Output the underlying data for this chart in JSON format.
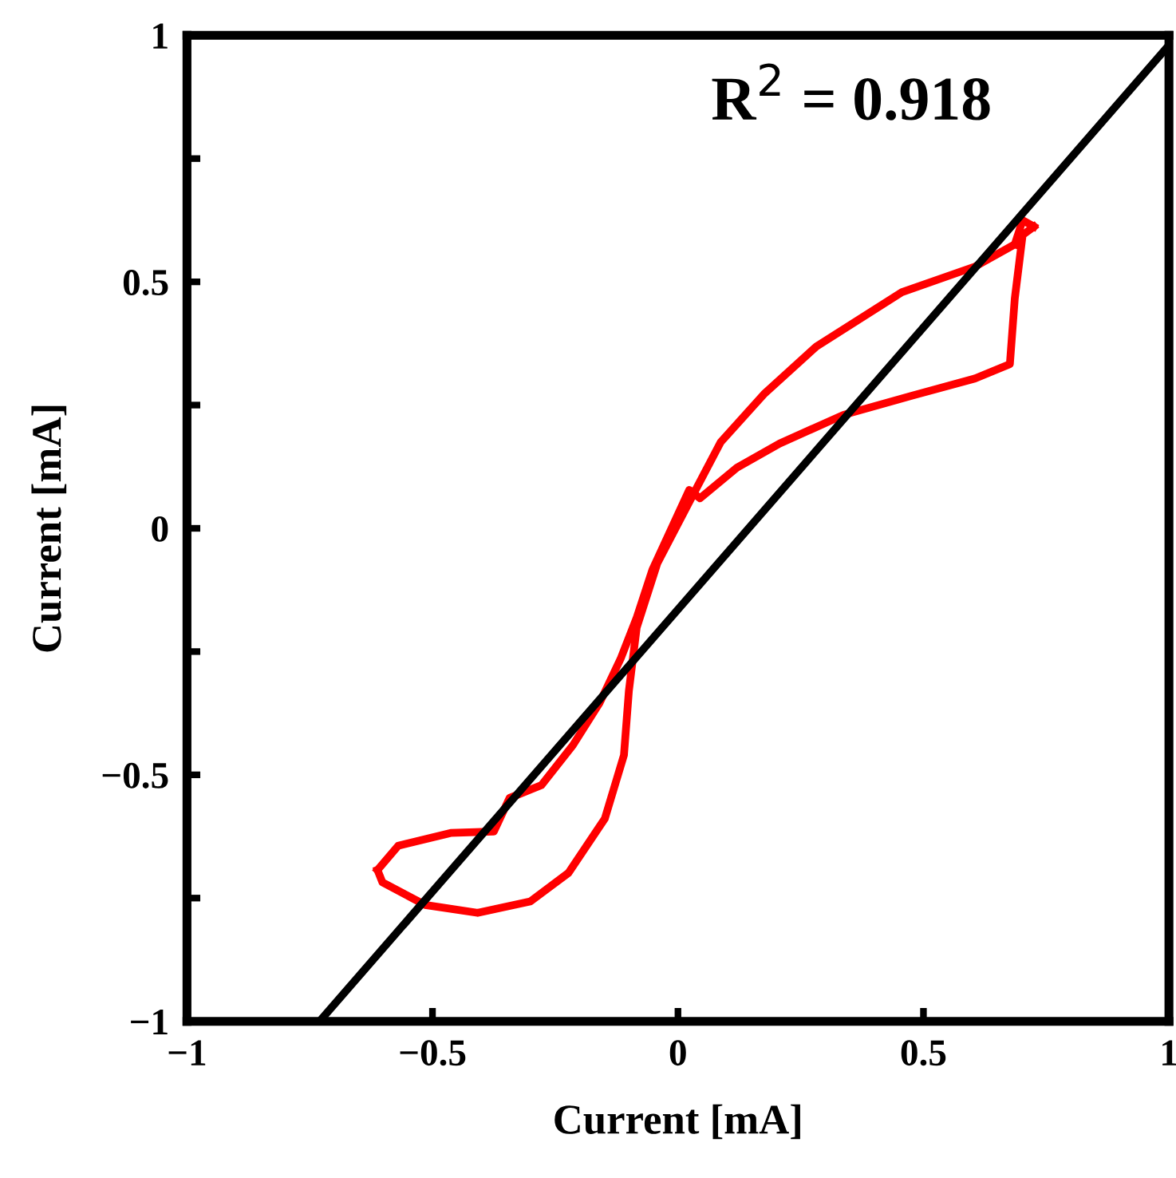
{
  "chart_data": {
    "type": "line",
    "xlabel": "Current [mA]",
    "ylabel": "Current [mA]",
    "annotations": [
      "R$^{2}$ = 0.918"
    ],
    "xlim": [
      -1,
      1
    ],
    "ylim": [
      -1,
      1
    ],
    "xticks": [
      {
        "value": -1,
        "label": "−1"
      },
      {
        "value": -0.5,
        "label": "−0.5"
      },
      0,
      0.5,
      1
    ],
    "yticks": [
      {
        "value": -1,
        "label": "−1"
      },
      {
        "value": -0.75,
        "label": null
      },
      {
        "value": -0.5,
        "label": "−0.5"
      },
      {
        "value": -0.25,
        "label": null
      },
      0,
      {
        "value": 0.25,
        "label": null
      },
      0.5,
      {
        "value": 0.75,
        "label": null
      },
      1
    ],
    "grid": false,
    "legend": false,
    "marker": "none",
    "line_style": "solid",
    "series": [
      {
        "color": "#ff0000",
        "x": [
          -0.612,
          -0.602,
          -0.515,
          -0.408,
          -0.301,
          -0.223,
          -0.149,
          -0.11,
          -0.1,
          -0.084,
          -0.042,
          0.036,
          0.087,
          0.175,
          0.282,
          0.456,
          0.605,
          0.686
        ],
        "values": [
          -0.693,
          -0.718,
          -0.764,
          -0.78,
          -0.757,
          -0.699,
          -0.589,
          -0.46,
          -0.33,
          -0.201,
          -0.071,
          0.078,
          0.175,
          0.272,
          0.369,
          0.479,
          0.531,
          0.576
        ]
      },
      {
        "color": "#ff0000",
        "x": [
          -0.612,
          -0.57,
          -0.463,
          -0.375,
          -0.343,
          -0.278,
          -0.214,
          -0.159,
          -0.117,
          -0.084,
          -0.052,
          0.023,
          0.045,
          0.12,
          0.207,
          0.337,
          0.476,
          0.605,
          0.676,
          0.686,
          0.702,
          0.725
        ],
        "values": [
          -0.693,
          -0.644,
          -0.618,
          -0.615,
          -0.547,
          -0.521,
          -0.44,
          -0.353,
          -0.265,
          -0.181,
          -0.084,
          0.078,
          0.061,
          0.123,
          0.172,
          0.23,
          0.269,
          0.304,
          0.333,
          0.466,
          0.595,
          0.612
        ]
      },
      {
        "color": "#ff0000",
        "x": [
          0.686,
          0.702,
          0.725
        ],
        "values": [
          0.576,
          0.625,
          0.612
        ]
      },
      {
        "color": "#000000",
        "x": [
          -0.73,
          1
        ],
        "values": [
          -1,
          0.98
        ]
      }
    ]
  }
}
